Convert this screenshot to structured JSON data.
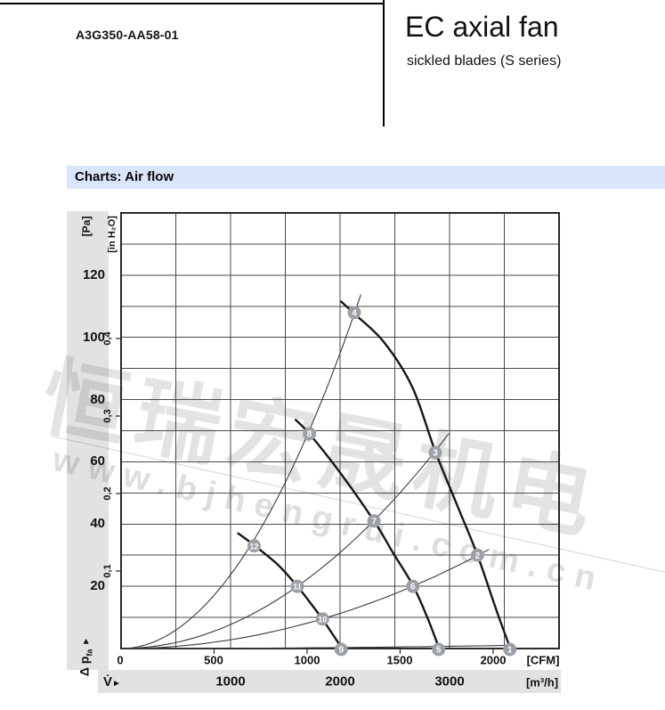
{
  "header": {
    "part_number": "A3G350-AA58-01",
    "title": "EC axial fan",
    "subtitle": "sickled blades (S series)"
  },
  "section_title": "Charts: Air flow",
  "watermark": {
    "text": "恒瑞宏晟机电",
    "url": "www.bjhengrui.com.cn"
  },
  "colors": {
    "section_bar": "#d8e5fa",
    "axis_band": "#e2e2e3",
    "fan_curve": "#161616",
    "system_curve": "#3a3a3a",
    "grid": "#4a4a4a",
    "marker": "#9aa0a6",
    "marker_text": "#ffffff"
  },
  "chart_data": {
    "type": "line",
    "title": "Air flow",
    "x_axis": {
      "unit_primary": "[m³/h]",
      "unit_secondary": "[CFM]",
      "symbol": "V̇",
      "arrow": "►",
      "origin_label": "0",
      "range_m3h": [
        0,
        4000
      ],
      "grid_step_m3h": 500,
      "tick_values_m3h": [
        1000,
        2000,
        3000
      ],
      "tick_labels_m3h": [
        "1000",
        "2000",
        "3000"
      ],
      "tick_values_cfm": [
        500,
        1000,
        1500,
        2000
      ],
      "tick_labels_cfm": [
        "500",
        "1000",
        "1500",
        "2000"
      ]
    },
    "y_axis": {
      "unit_primary": "[Pa]",
      "unit_secondary": "[in H₂O]",
      "symbol": "Δ p",
      "symbol_sub": "fa",
      "arrow": "►",
      "range_pa": [
        0,
        140
      ],
      "grid_step_pa": 10,
      "tick_values_pa": [
        20,
        40,
        60,
        80,
        100,
        120
      ],
      "tick_labels_pa": [
        "20",
        "40",
        "60",
        "80",
        "100",
        "120"
      ],
      "tick_values_inh2o": [
        0.1,
        0.2,
        0.3,
        0.4
      ],
      "tick_labels_inh2o": [
        "0,1",
        "0,2",
        "0,3",
        "0,4"
      ]
    },
    "fan_curves": [
      {
        "name": "speed-max",
        "points": [
          [
            2010,
            111.5
          ],
          [
            2130,
            107.6
          ],
          [
            2400,
            98.5
          ],
          [
            2660,
            84
          ],
          [
            2870,
            63.3
          ],
          [
            3070,
            46
          ],
          [
            3255,
            30
          ],
          [
            3425,
            12.6
          ],
          [
            3550,
            0.5
          ]
        ]
      },
      {
        "name": "speed-mid",
        "points": [
          [
            1595,
            73.5
          ],
          [
            1720,
            69
          ],
          [
            1990,
            57
          ],
          [
            2310,
            41
          ],
          [
            2480,
            31
          ],
          [
            2665,
            20.3
          ],
          [
            2800,
            9.7
          ],
          [
            2900,
            0.5
          ]
        ]
      },
      {
        "name": "speed-low",
        "points": [
          [
            1070,
            37
          ],
          [
            1215,
            33.2
          ],
          [
            1430,
            27
          ],
          [
            1610,
            20
          ],
          [
            1730,
            14.6
          ],
          [
            1840,
            9.4
          ],
          [
            2010,
            0.5
          ]
        ]
      }
    ],
    "system_curves": [
      {
        "name": "system-curve-A",
        "coeff_pa_per_m3h2": 2.372e-05,
        "v_start": 0,
        "v_end": 2190
      },
      {
        "name": "system-curve-B",
        "coeff_pa_per_m3h2": 7.71e-06,
        "v_start": 0,
        "v_end": 2995
      },
      {
        "name": "system-curve-C",
        "coeff_pa_per_m3h2": 2.82e-06,
        "v_start": 0,
        "v_end": 3360
      },
      {
        "name": "system-curve-D",
        "coeff_pa_per_m3h2": 8e-08,
        "v_start": 0,
        "v_end": 3565
      }
    ],
    "operating_points": [
      {
        "label": "1",
        "v_m3h": 3550,
        "p_pa": 0
      },
      {
        "label": "2",
        "v_m3h": 3255,
        "p_pa": 30
      },
      {
        "label": "3",
        "v_m3h": 2870,
        "p_pa": 63
      },
      {
        "label": "4",
        "v_m3h": 2130,
        "p_pa": 108
      },
      {
        "label": "5",
        "v_m3h": 2900,
        "p_pa": 0
      },
      {
        "label": "6",
        "v_m3h": 2665,
        "p_pa": 20
      },
      {
        "label": "7",
        "v_m3h": 2310,
        "p_pa": 41
      },
      {
        "label": "8",
        "v_m3h": 1720,
        "p_pa": 69
      },
      {
        "label": "9",
        "v_m3h": 2010,
        "p_pa": 0
      },
      {
        "label": "10",
        "v_m3h": 1840,
        "p_pa": 9.5
      },
      {
        "label": "11",
        "v_m3h": 1610,
        "p_pa": 20
      },
      {
        "label": "12",
        "v_m3h": 1215,
        "p_pa": 33
      }
    ]
  }
}
